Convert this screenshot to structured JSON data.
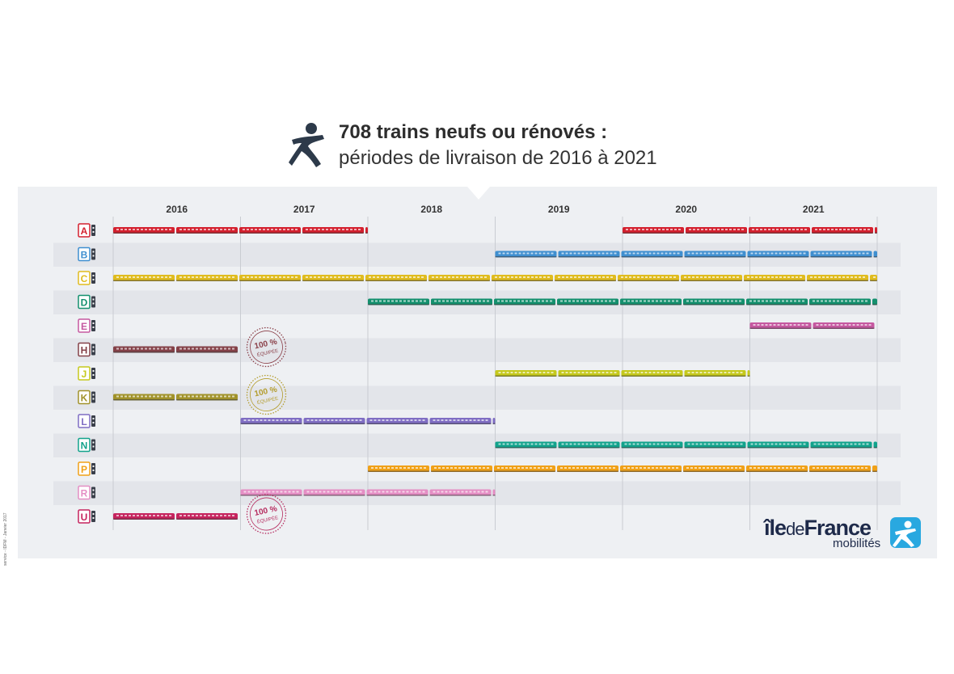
{
  "header": {
    "title": "708 trains neufs ou rénovés :",
    "subtitle": "périodes de livraison de 2016 à 2021",
    "icon": "walking-person-icon"
  },
  "credit": "service - IDFM - Janvier 2017",
  "logo": {
    "word_ile": "île",
    "word_de": "de",
    "word_france": "France",
    "sub": "mobilités",
    "icon": "walking-person-icon",
    "color": "#29a8e0"
  },
  "chart_data": {
    "type": "timeline",
    "title": "708 trains neufs ou rénovés :",
    "subtitle": "périodes de livraison de 2016 à 2021",
    "years": [
      "2016",
      "2017",
      "2018",
      "2019",
      "2020",
      "2021"
    ],
    "x_range": [
      2016,
      2022
    ],
    "stamp_label": "100 %",
    "stamp_sub": "ÉQUIPÉE",
    "lines": [
      {
        "label": "A",
        "color": "#d4202e",
        "periods": [
          [
            2016,
            2018
          ],
          [
            2020,
            2022
          ]
        ],
        "stamp": false
      },
      {
        "label": "B",
        "color": "#3f8fd0",
        "periods": [
          [
            2019,
            2022
          ]
        ],
        "stamp": false
      },
      {
        "label": "C",
        "color": "#e0bc1f",
        "periods": [
          [
            2016,
            2022
          ]
        ],
        "stamp": false
      },
      {
        "label": "D",
        "color": "#14906e",
        "periods": [
          [
            2018,
            2022
          ]
        ],
        "stamp": false
      },
      {
        "label": "E",
        "color": "#c558a0",
        "periods": [
          [
            2021,
            2022
          ]
        ],
        "stamp": false
      },
      {
        "label": "H",
        "color": "#844148",
        "periods": [
          [
            2016,
            2017
          ]
        ],
        "stamp": true,
        "stamp_color": "#8a3f48"
      },
      {
        "label": "J",
        "color": "#c5c91c",
        "periods": [
          [
            2019,
            2021
          ]
        ],
        "stamp": false
      },
      {
        "label": "K",
        "color": "#a1922a",
        "periods": [
          [
            2016,
            2017
          ]
        ],
        "stamp": true,
        "stamp_color": "#b39c2c"
      },
      {
        "label": "L",
        "color": "#7f6dc3",
        "periods": [
          [
            2017,
            2019
          ]
        ],
        "stamp": false
      },
      {
        "label": "N",
        "color": "#12a38c",
        "periods": [
          [
            2019,
            2022
          ]
        ],
        "stamp": false
      },
      {
        "label": "P",
        "color": "#f0a118",
        "periods": [
          [
            2018,
            2022
          ]
        ],
        "stamp": false
      },
      {
        "label": "R",
        "color": "#e48ec4",
        "periods": [
          [
            2017,
            2019
          ]
        ],
        "stamp": false
      },
      {
        "label": "U",
        "color": "#c6245e",
        "periods": [
          [
            2016,
            2017
          ]
        ],
        "stamp": true,
        "stamp_color": "#b52a5e"
      }
    ]
  }
}
